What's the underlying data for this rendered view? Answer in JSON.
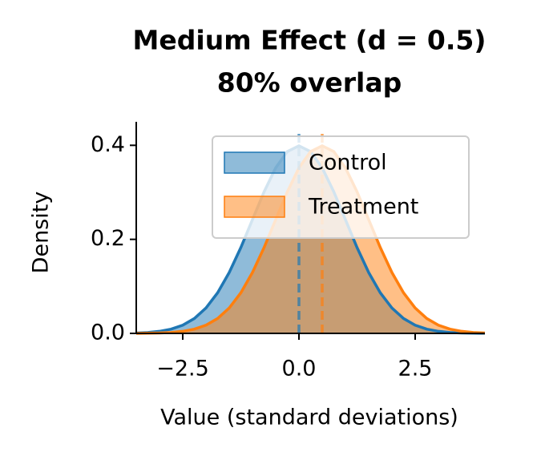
{
  "chart_data": {
    "type": "density",
    "title": "Medium Effect (d = 0.5)",
    "subtitle": "80% overlap",
    "x_label": "Value (standard deviations)",
    "y_label": "Density",
    "x": [
      -3.5,
      -3.25,
      -3,
      -2.75,
      -2.5,
      -2.25,
      -2,
      -1.75,
      -1.5,
      -1.25,
      -1,
      -0.75,
      -0.5,
      -0.25,
      0,
      0.25,
      0.5,
      0.75,
      1,
      1.25,
      1.5,
      1.75,
      2,
      2.25,
      2.5,
      2.75,
      3,
      3.25,
      3.5,
      3.75,
      4
    ],
    "series": [
      {
        "name": "Control",
        "color": "#1f77b4",
        "mean": 0,
        "values": [
          0.0009,
          0.002,
          0.0044,
          0.0091,
          0.0175,
          0.0317,
          0.054,
          0.0863,
          0.1295,
          0.1826,
          0.242,
          0.3011,
          0.3521,
          0.3867,
          0.3989,
          0.3867,
          0.3521,
          0.3011,
          0.242,
          0.1826,
          0.1295,
          0.0863,
          0.054,
          0.0317,
          0.0175,
          0.0091,
          0.0044,
          0.002,
          0.0009,
          0.0004,
          0.0001
        ]
      },
      {
        "name": "Treatment",
        "color": "#ff7f0e",
        "mean": 0.5,
        "values": [
          0.0001,
          0.0004,
          0.0009,
          0.002,
          0.0044,
          0.0091,
          0.0175,
          0.0317,
          0.054,
          0.0863,
          0.1295,
          0.1826,
          0.242,
          0.3011,
          0.3521,
          0.3867,
          0.3989,
          0.3867,
          0.3521,
          0.3011,
          0.242,
          0.1826,
          0.1295,
          0.0863,
          0.054,
          0.0317,
          0.0175,
          0.0091,
          0.0044,
          0.002,
          0.0009
        ]
      }
    ],
    "xlim": [
      -3.5,
      4
    ],
    "ylim": [
      0,
      0.45
    ],
    "xticks": [
      {
        "value": -2.5,
        "label": "−2.5"
      },
      {
        "value": 0,
        "label": "0.0"
      },
      {
        "value": 2.5,
        "label": "2.5"
      }
    ],
    "yticks": [
      {
        "value": 0,
        "label": "0.0"
      },
      {
        "value": 0.2,
        "label": "0.2"
      },
      {
        "value": 0.4,
        "label": "0.4"
      }
    ],
    "legend": "upper right"
  }
}
